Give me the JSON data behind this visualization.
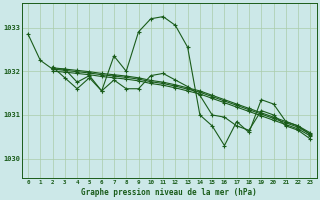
{
  "background_color": "#cce8e8",
  "grid_color": "#aaccaa",
  "line_color": "#1a5c1a",
  "title": "Graphe pression niveau de la mer (hPa)",
  "xlim": [
    -0.5,
    23.5
  ],
  "ylim": [
    1029.55,
    1033.55
  ],
  "yticks": [
    1030,
    1031,
    1032,
    1033
  ],
  "xticks": [
    0,
    1,
    2,
    3,
    4,
    5,
    6,
    7,
    8,
    9,
    10,
    11,
    12,
    13,
    14,
    15,
    16,
    17,
    18,
    19,
    20,
    21,
    22,
    23
  ],
  "series": [
    {
      "x": [
        0,
        1,
        2,
        3,
        4,
        5,
        6,
        7,
        8,
        9,
        10,
        11,
        12,
        13,
        14,
        15,
        16,
        17,
        18,
        19,
        20,
        21,
        22,
        23
      ],
      "y": [
        1032.85,
        1032.25,
        1032.05,
        1032.05,
        1031.75,
        1031.9,
        1031.55,
        1032.35,
        1032.0,
        1032.9,
        1033.2,
        1033.25,
        1033.05,
        1032.55,
        1031.0,
        1030.75,
        1030.3,
        1030.85,
        1030.6,
        1031.35,
        1031.25,
        1030.85,
        1030.75,
        1030.55
      ]
    },
    {
      "x": [
        2,
        3,
        4,
        5,
        6,
        7,
        8,
        9,
        10,
        11,
        12,
        13,
        14,
        15,
        16,
        17,
        18,
        19,
        20,
        21,
        22,
        23
      ],
      "y": [
        1032.0,
        1031.98,
        1031.95,
        1031.92,
        1031.88,
        1031.85,
        1031.82,
        1031.78,
        1031.72,
        1031.68,
        1031.62,
        1031.55,
        1031.48,
        1031.38,
        1031.28,
        1031.18,
        1031.08,
        1030.98,
        1030.88,
        1030.78,
        1030.68,
        1030.52
      ]
    },
    {
      "x": [
        2,
        3,
        4,
        5,
        6,
        7,
        8,
        9,
        10,
        11,
        12,
        13,
        14,
        15,
        16,
        17,
        18,
        19,
        20,
        21,
        22,
        23
      ],
      "y": [
        1032.05,
        1032.02,
        1031.99,
        1031.96,
        1031.92,
        1031.89,
        1031.86,
        1031.82,
        1031.76,
        1031.72,
        1031.66,
        1031.59,
        1031.52,
        1031.42,
        1031.32,
        1031.22,
        1031.12,
        1031.02,
        1030.92,
        1030.82,
        1030.72,
        1030.56
      ]
    },
    {
      "x": [
        2,
        3,
        4,
        5,
        6,
        7,
        8,
        9,
        10,
        11,
        12,
        13,
        14,
        15,
        16,
        17,
        18,
        19,
        20,
        21,
        22,
        23
      ],
      "y": [
        1032.08,
        1032.05,
        1032.02,
        1031.99,
        1031.95,
        1031.92,
        1031.89,
        1031.85,
        1031.79,
        1031.75,
        1031.69,
        1031.62,
        1031.55,
        1031.45,
        1031.35,
        1031.25,
        1031.15,
        1031.05,
        1030.95,
        1030.85,
        1030.75,
        1030.59
      ]
    },
    {
      "x": [
        2,
        3,
        4,
        5,
        6,
        7,
        8,
        9,
        10,
        11,
        12,
        13,
        14,
        15,
        16,
        17,
        18,
        19,
        20,
        21,
        22,
        23
      ],
      "y": [
        1032.1,
        1031.85,
        1031.6,
        1031.85,
        1031.55,
        1031.8,
        1031.6,
        1031.6,
        1031.9,
        1031.95,
        1031.8,
        1031.65,
        1031.45,
        1031.0,
        1030.95,
        1030.75,
        1030.65,
        1031.1,
        1031.0,
        1030.75,
        1030.65,
        1030.45
      ]
    }
  ]
}
